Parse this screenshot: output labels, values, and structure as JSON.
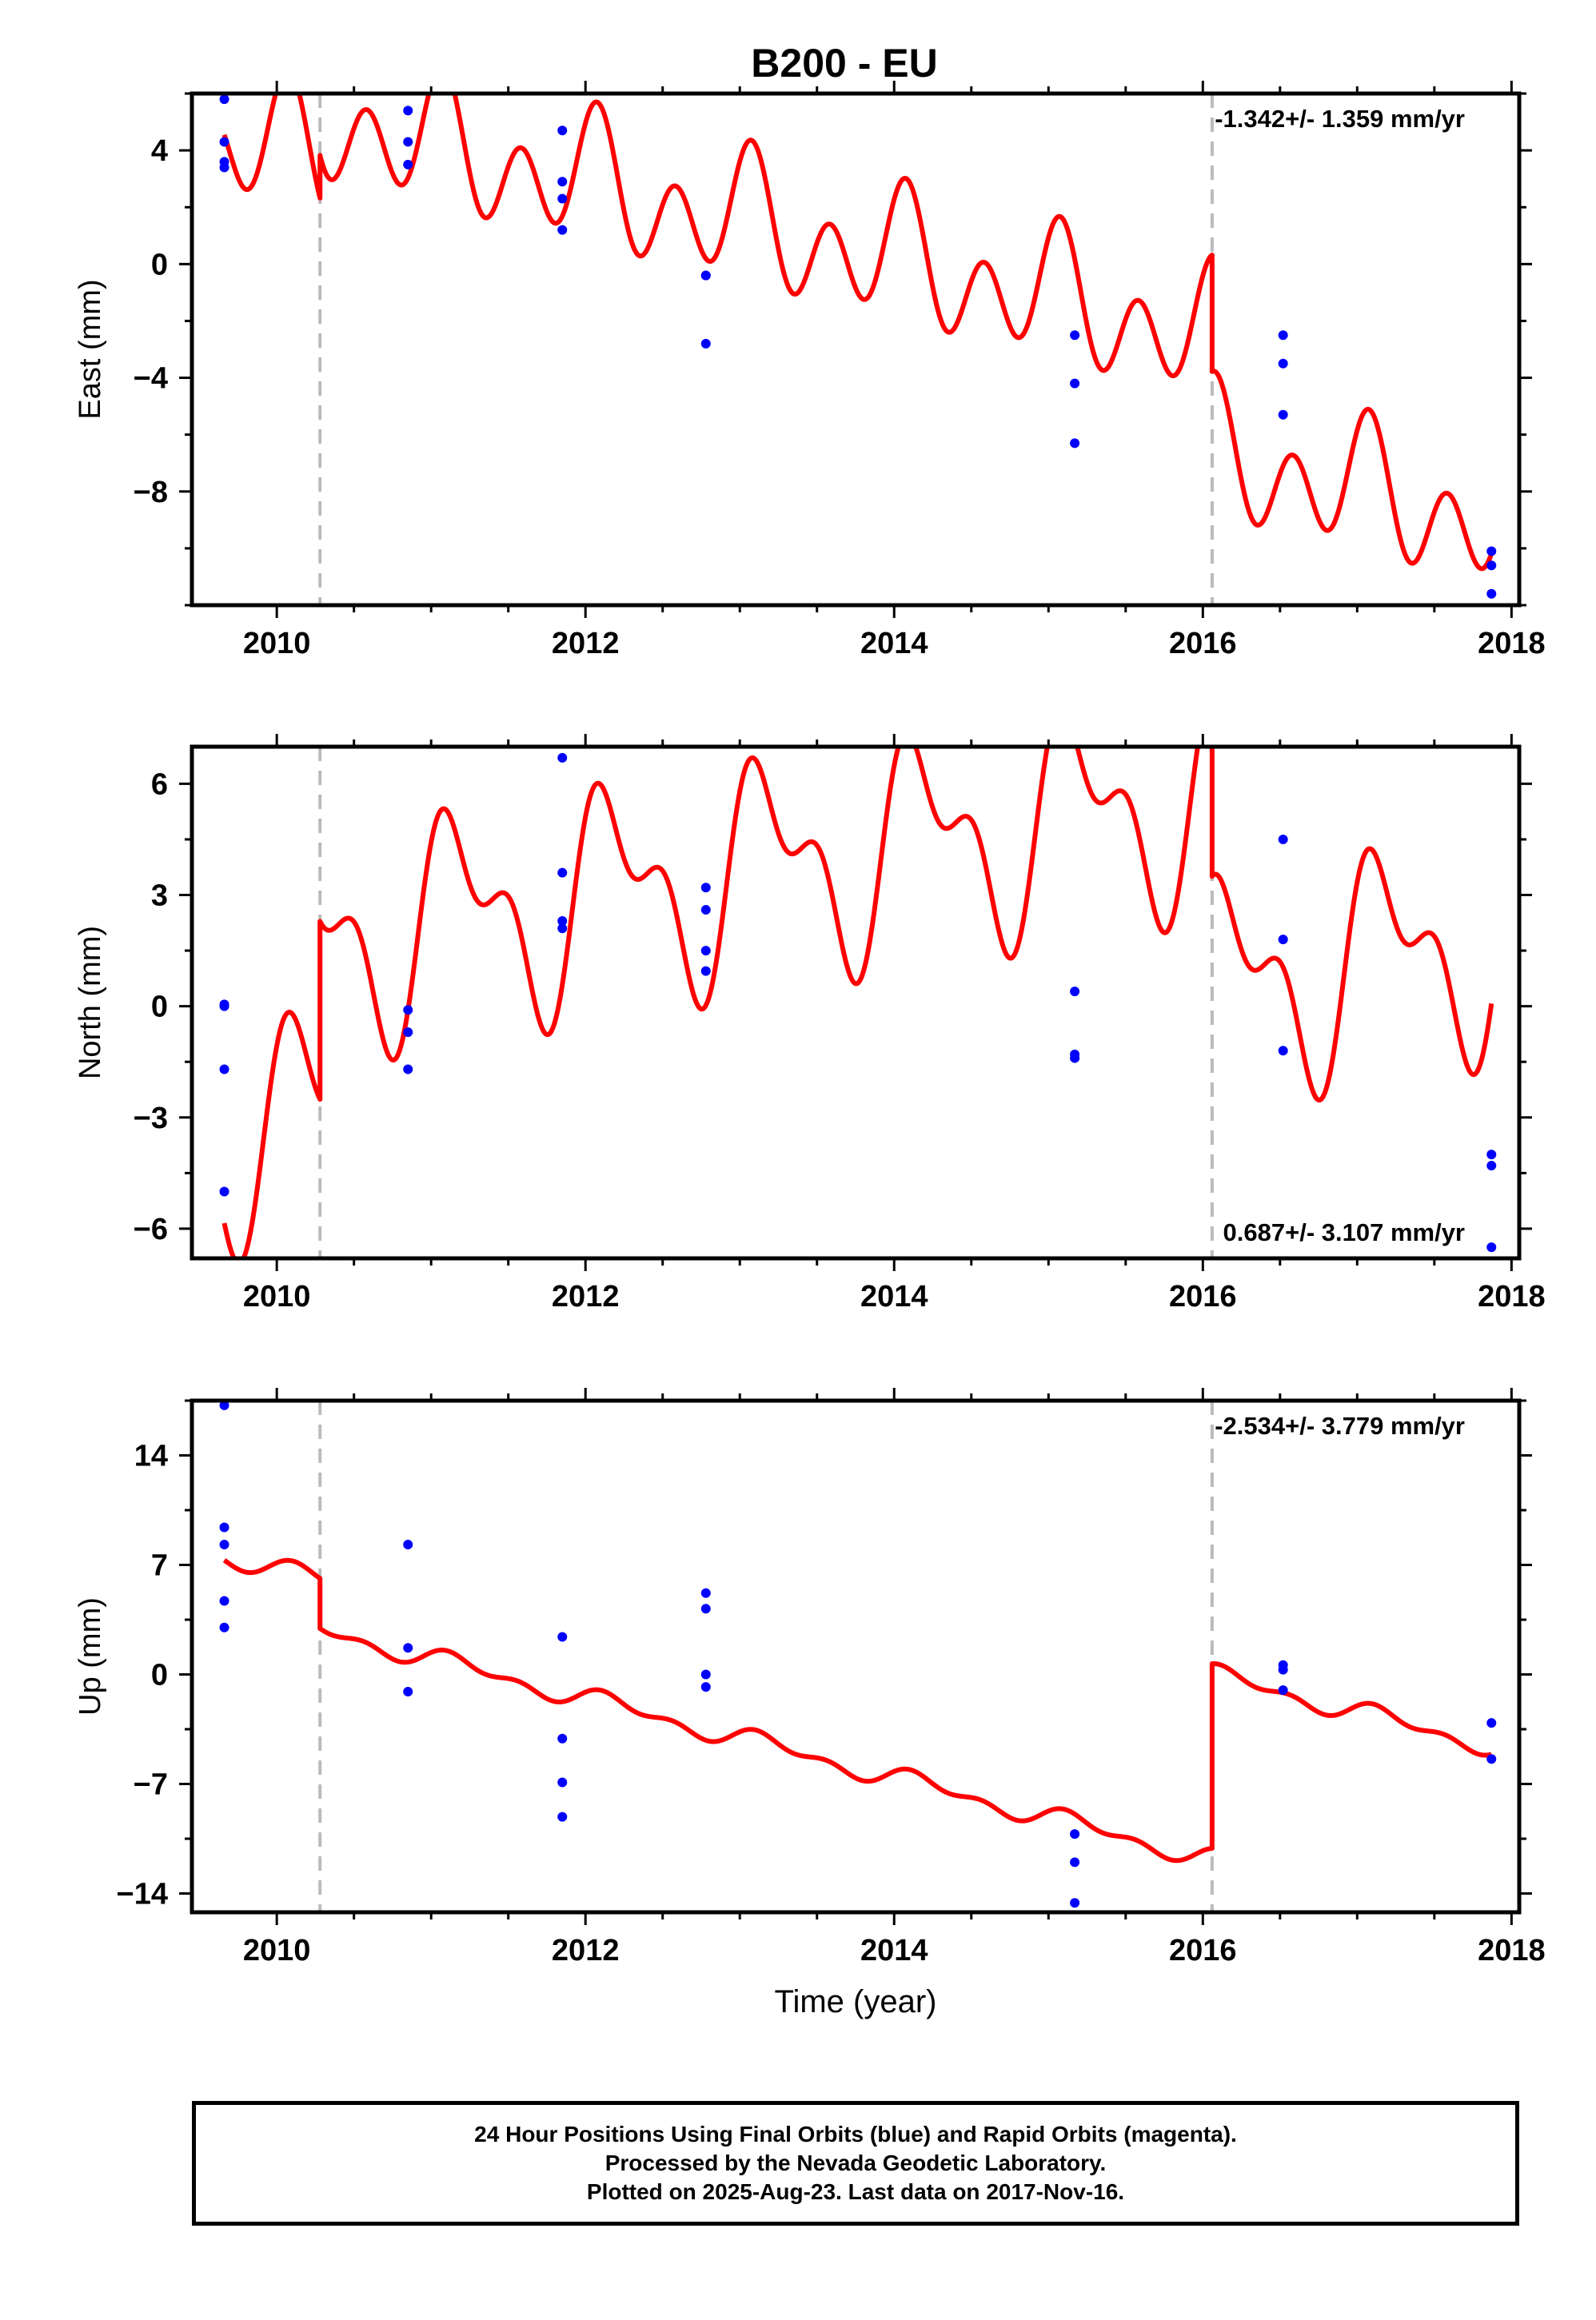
{
  "title": "B200 - EU",
  "colors": {
    "final_orbit": "#0000ff",
    "model": "#ff0000",
    "event_line": "#bbbbbb",
    "axes": "#000000"
  },
  "chart_data": [
    {
      "type": "scatter",
      "title": "B200 - EU",
      "xlabel": "",
      "ylabel": "East (mm)",
      "xlim": [
        2009.45,
        2018.05
      ],
      "ylim": [
        -12.0,
        6.0
      ],
      "xticks": [
        2010,
        2012,
        2014,
        2016,
        2018
      ],
      "xtick_labels": [
        "2010",
        "2012",
        "2014",
        "2016",
        "2018"
      ],
      "yticks": [
        4,
        0,
        -4,
        -8
      ],
      "ytick_labels": [
        "4",
        "0",
        "−4",
        "−8"
      ],
      "rate_annotation": "-1.342+/- 1.359 mm/yr",
      "annotation_position": "top-right",
      "event_lines": [
        2010.28,
        2016.06
      ],
      "series": [
        {
          "kind": "points",
          "x": [
            2009.66,
            2009.66,
            2009.66,
            2009.66,
            2010.85,
            2010.85,
            2010.85,
            2011.85,
            2011.85,
            2011.85,
            2011.85,
            2012.78,
            2012.78,
            2012.78,
            2015.17,
            2015.17,
            2015.17,
            2016.52,
            2016.52,
            2016.52,
            2017.87,
            2017.87,
            2017.87
          ],
          "y": [
            5.8,
            4.3,
            3.6,
            3.4,
            5.4,
            4.3,
            3.5,
            4.7,
            2.9,
            2.3,
            1.2,
            -0.4,
            -0.4,
            -2.8,
            -2.5,
            -4.2,
            -6.3,
            -2.5,
            -3.5,
            -5.3,
            -10.1,
            -10.6,
            -11.6
          ]
        },
        {
          "kind": "model",
          "trend": -1.342,
          "ref_year": 2009.66,
          "segments": [
            {
              "start": 2009.66,
              "end": 2010.28,
              "offset": 4.5
            },
            {
              "start": 2010.28,
              "end": 2016.06,
              "offset": 6.0
            },
            {
              "start": 2016.06,
              "end": 2017.87,
              "offset": 1.9
            }
          ],
          "annual": {
            "a": 0.35,
            "b": 1.1
          },
          "semiannual": {
            "a": 1.5,
            "b": 1.0
          }
        }
      ]
    },
    {
      "type": "scatter",
      "xlabel": "",
      "ylabel": "North (mm)",
      "xlim": [
        2009.45,
        2018.05
      ],
      "ylim": [
        -6.8,
        7.0
      ],
      "xticks": [
        2010,
        2012,
        2014,
        2016,
        2018
      ],
      "xtick_labels": [
        "2010",
        "2012",
        "2014",
        "2016",
        "2018"
      ],
      "yticks": [
        6,
        3,
        0,
        -3,
        -6
      ],
      "ytick_labels": [
        "6",
        "3",
        "0",
        "−3",
        "−6"
      ],
      "rate_annotation": "0.687+/- 3.107 mm/yr",
      "annotation_position": "bottom-right",
      "event_lines": [
        2010.28,
        2016.06
      ],
      "series": [
        {
          "kind": "points",
          "x": [
            2009.66,
            2009.66,
            2009.66,
            2009.66,
            2010.85,
            2010.85,
            2010.85,
            2011.85,
            2011.85,
            2011.85,
            2011.85,
            2012.78,
            2012.78,
            2012.78,
            2012.78,
            2015.17,
            2015.17,
            2015.17,
            2016.52,
            2016.52,
            2016.52,
            2017.87,
            2017.87,
            2017.87
          ],
          "y": [
            0.05,
            0.0,
            -1.7,
            -5.0,
            -0.1,
            -0.7,
            -1.7,
            6.7,
            3.6,
            2.3,
            2.1,
            3.2,
            2.6,
            1.5,
            0.95,
            0.4,
            -1.3,
            -1.4,
            4.5,
            1.8,
            -1.2,
            -4.0,
            -4.3,
            -6.5
          ]
        },
        {
          "kind": "model",
          "trend": 0.687,
          "ref_year": 2009.66,
          "segments": [
            {
              "start": 2009.66,
              "end": 2010.28,
              "offset": -3.5
            },
            {
              "start": 2010.28,
              "end": 2016.06,
              "offset": 1.3
            },
            {
              "start": 2016.06,
              "end": 2017.87,
              "offset": -3.9
            }
          ],
          "annual": {
            "a": 2.2,
            "b": 0.9
          },
          "semiannual": {
            "a": 0.6,
            "b": 1.3
          }
        }
      ]
    },
    {
      "type": "scatter",
      "xlabel": "Time (year)",
      "ylabel": "Up (mm)",
      "xlim": [
        2009.45,
        2018.05
      ],
      "ylim": [
        -15.2,
        17.5
      ],
      "xticks": [
        2010,
        2012,
        2014,
        2016,
        2018
      ],
      "xtick_labels": [
        "2010",
        "2012",
        "2014",
        "2016",
        "2018"
      ],
      "yticks": [
        14,
        7,
        0,
        -7,
        -14
      ],
      "ytick_labels": [
        "14",
        "7",
        "0",
        "−7",
        "−14"
      ],
      "rate_annotation": "-2.534+/- 3.779 mm/yr",
      "annotation_position": "top-right",
      "event_lines": [
        2010.28,
        2016.06
      ],
      "series": [
        {
          "kind": "points",
          "x": [
            2009.66,
            2009.66,
            2009.66,
            2009.66,
            2009.66,
            2010.85,
            2010.85,
            2010.85,
            2011.85,
            2011.85,
            2011.85,
            2011.85,
            2012.78,
            2012.78,
            2012.78,
            2012.78,
            2015.17,
            2015.17,
            2015.17,
            2016.52,
            2016.52,
            2016.52,
            2017.87,
            2017.87
          ],
          "y": [
            17.2,
            9.4,
            8.3,
            4.7,
            3.0,
            8.3,
            1.7,
            -1.1,
            2.4,
            -4.1,
            -6.9,
            -9.1,
            5.2,
            4.2,
            0.0,
            -0.8,
            -10.2,
            -12.0,
            -14.6,
            0.6,
            0.3,
            -1.0,
            -3.1,
            -5.4
          ]
        },
        {
          "kind": "model",
          "trend": -2.534,
          "ref_year": 2009.66,
          "segments": [
            {
              "start": 2009.66,
              "end": 2010.28,
              "offset": 7.6
            },
            {
              "start": 2010.28,
              "end": 2016.06,
              "offset": 4.4
            },
            {
              "start": 2016.06,
              "end": 2017.87,
              "offset": 16.2
            }
          ],
          "annual": {
            "a": 0.45,
            "b": 0.2
          },
          "semiannual": {
            "a": 0.3,
            "b": 0.2
          }
        }
      ]
    }
  ],
  "footer": {
    "line1": "24 Hour Positions Using Final Orbits (blue) and Rapid Orbits (magenta).",
    "line2": "Processed by the Nevada Geodetic Laboratory.",
    "line3": "Plotted on 2025-Aug-23. Last data on 2017-Nov-16."
  }
}
